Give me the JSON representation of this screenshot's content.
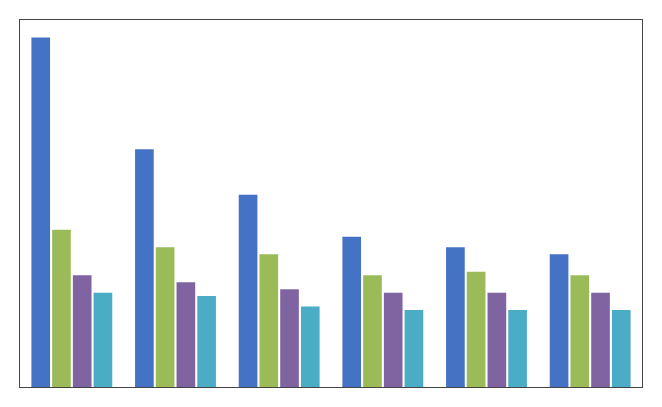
{
  "chart_data": {
    "type": "bar",
    "categories": [
      null,
      null,
      null,
      null,
      null,
      null
    ],
    "series": [
      {
        "color": "#4472C4",
        "values": [
          100,
          68,
          55,
          43,
          40,
          38
        ]
      },
      {
        "color": "#9BBB59",
        "values": [
          45,
          40,
          38,
          32,
          33,
          32
        ]
      },
      {
        "color": "#8064A2",
        "values": [
          32,
          30,
          28,
          27,
          27,
          27
        ]
      },
      {
        "color": "#4BACC6",
        "values": [
          27,
          26,
          23,
          22,
          22,
          22
        ]
      }
    ],
    "ylim": [
      0,
      105
    ],
    "grid": false,
    "tick_labels": false
  }
}
